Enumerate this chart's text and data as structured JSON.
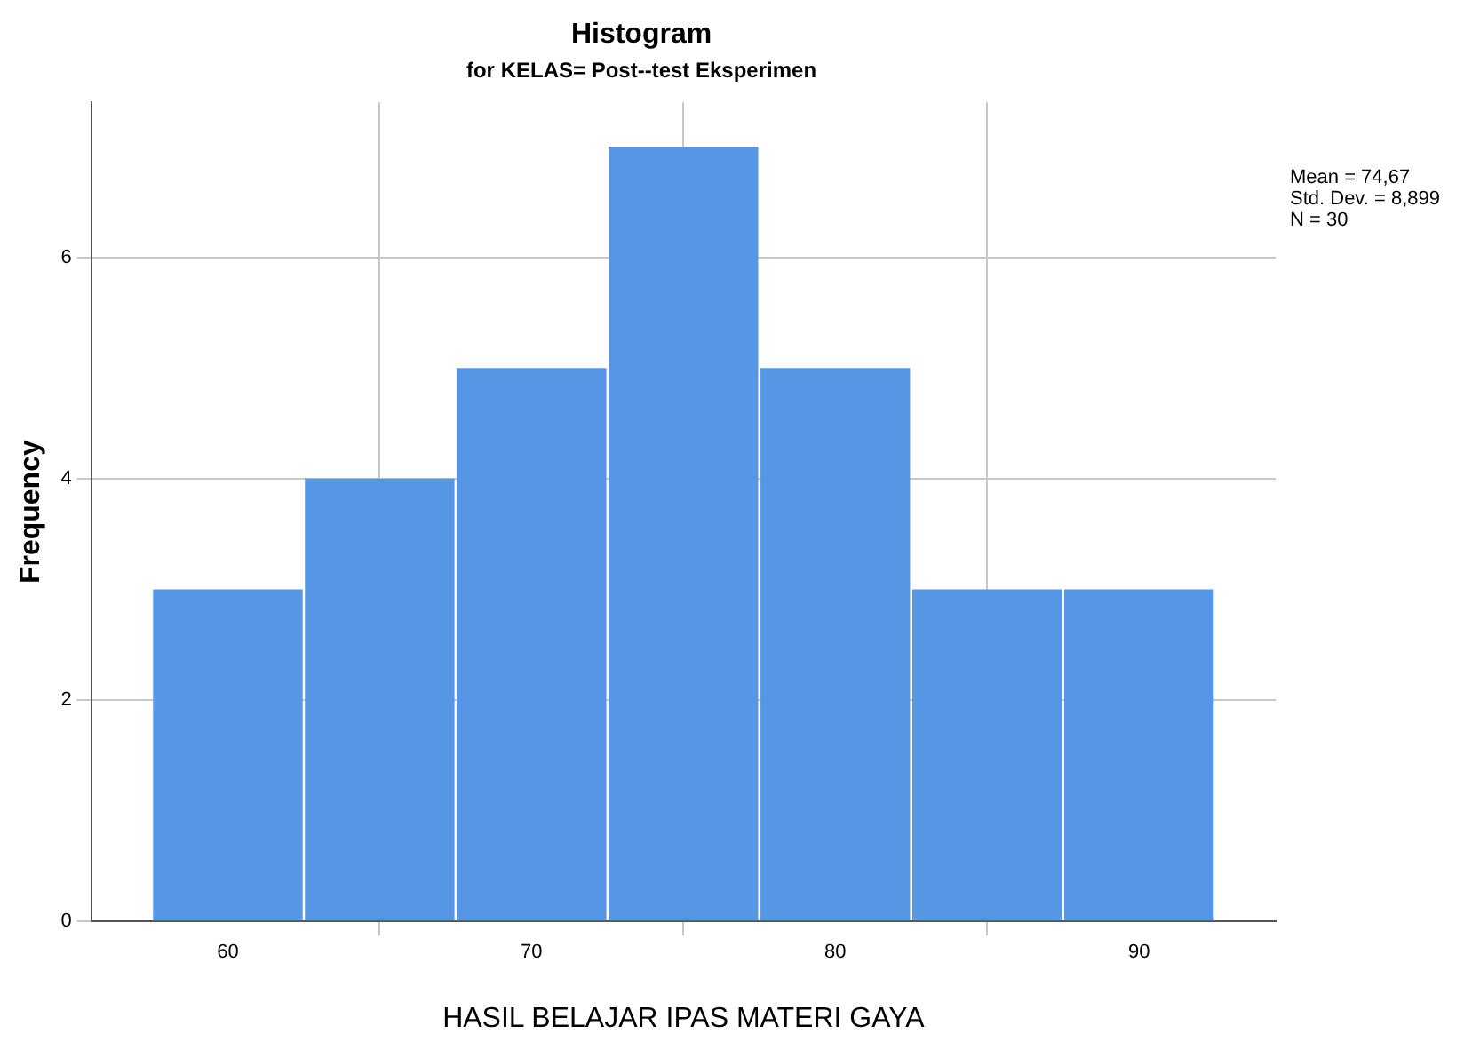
{
  "chart_data": {
    "type": "histogram",
    "title": "Histogram",
    "subtitle": "for KELAS= Post--test Eksperimen",
    "xlabel": "HASIL BELAJAR IPAS MATERI GAYA",
    "ylabel": "Frequency",
    "bins": [
      57.5,
      62.5,
      67.5,
      72.5,
      77.5,
      82.5,
      87.5,
      92.5
    ],
    "values": [
      3,
      4,
      5,
      7,
      5,
      3,
      3
    ],
    "color": "#5597e5",
    "xlim": [
      55.5,
      94.5
    ],
    "xticks": [
      60,
      70,
      80,
      90
    ],
    "ylim": [
      0,
      7.4
    ],
    "yticks": [
      0,
      2,
      4,
      6
    ],
    "grid": true,
    "annotations": [
      "Mean = 74,67",
      "Std. Dev. = 8,899",
      "N = 30"
    ]
  }
}
